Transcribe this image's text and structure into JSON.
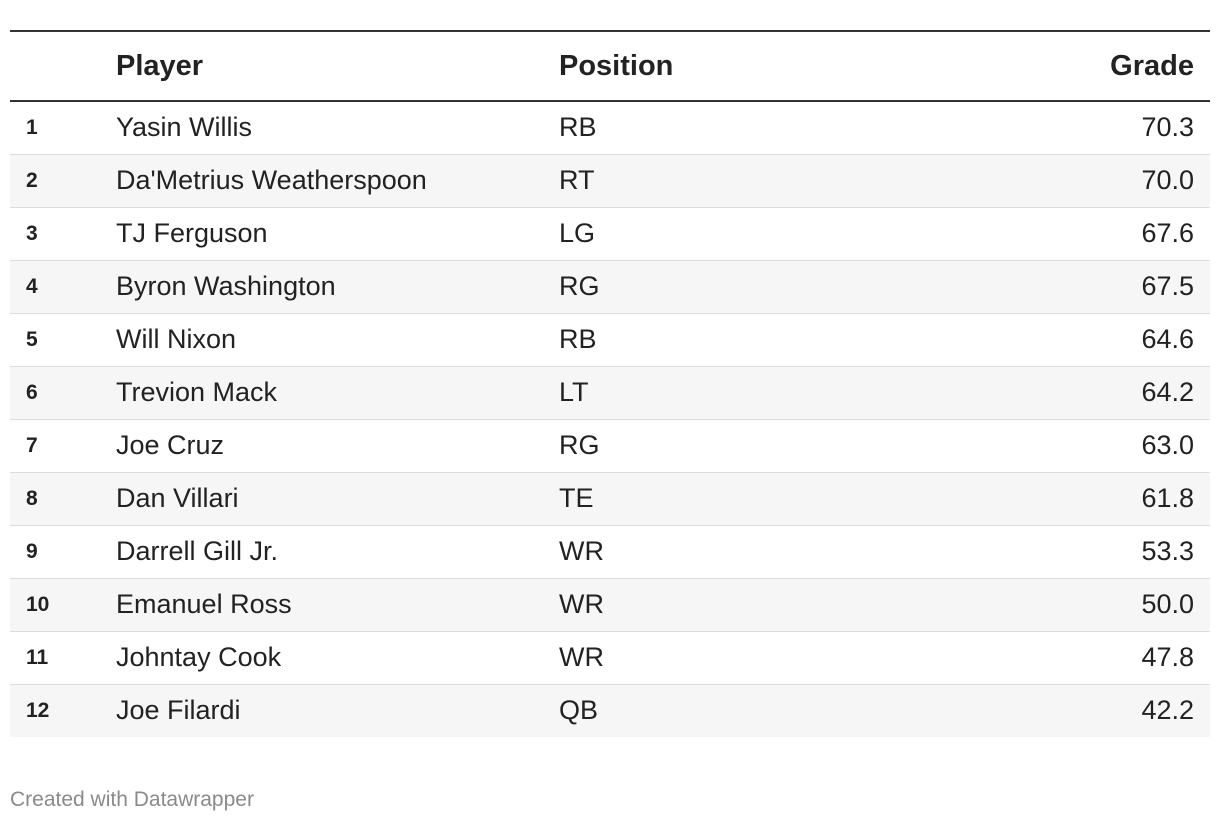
{
  "chart_data": {
    "type": "table",
    "columns": [
      "",
      "Player",
      "Position",
      "Grade"
    ],
    "rows": [
      {
        "rank": "1",
        "player": "Yasin Willis",
        "position": "RB",
        "grade": "70.3"
      },
      {
        "rank": "2",
        "player": "Da'Metrius Weatherspoon",
        "position": "RT",
        "grade": "70.0"
      },
      {
        "rank": "3",
        "player": "TJ Ferguson",
        "position": "LG",
        "grade": "67.6"
      },
      {
        "rank": "4",
        "player": "Byron Washington",
        "position": "RG",
        "grade": "67.5"
      },
      {
        "rank": "5",
        "player": "Will Nixon",
        "position": "RB",
        "grade": "64.6"
      },
      {
        "rank": "6",
        "player": "Trevion Mack",
        "position": "LT",
        "grade": "64.2"
      },
      {
        "rank": "7",
        "player": "Joe Cruz",
        "position": "RG",
        "grade": "63.0"
      },
      {
        "rank": "8",
        "player": "Dan Villari",
        "position": "TE",
        "grade": "61.8"
      },
      {
        "rank": "9",
        "player": "Darrell Gill Jr.",
        "position": "WR",
        "grade": "53.3"
      },
      {
        "rank": "10",
        "player": "Emanuel Ross",
        "position": "WR",
        "grade": "50.0"
      },
      {
        "rank": "11",
        "player": "Johntay Cook",
        "position": "WR",
        "grade": "47.8"
      },
      {
        "rank": "12",
        "player": "Joe Filardi",
        "position": "QB",
        "grade": "42.2"
      }
    ]
  },
  "footer": {
    "credit": "Created with Datawrapper"
  },
  "colors": {
    "text": "#222222",
    "rule": "#333333",
    "row_divider": "#dddddd",
    "stripe": "#f6f6f6",
    "footer_text": "#8a8a8a"
  }
}
